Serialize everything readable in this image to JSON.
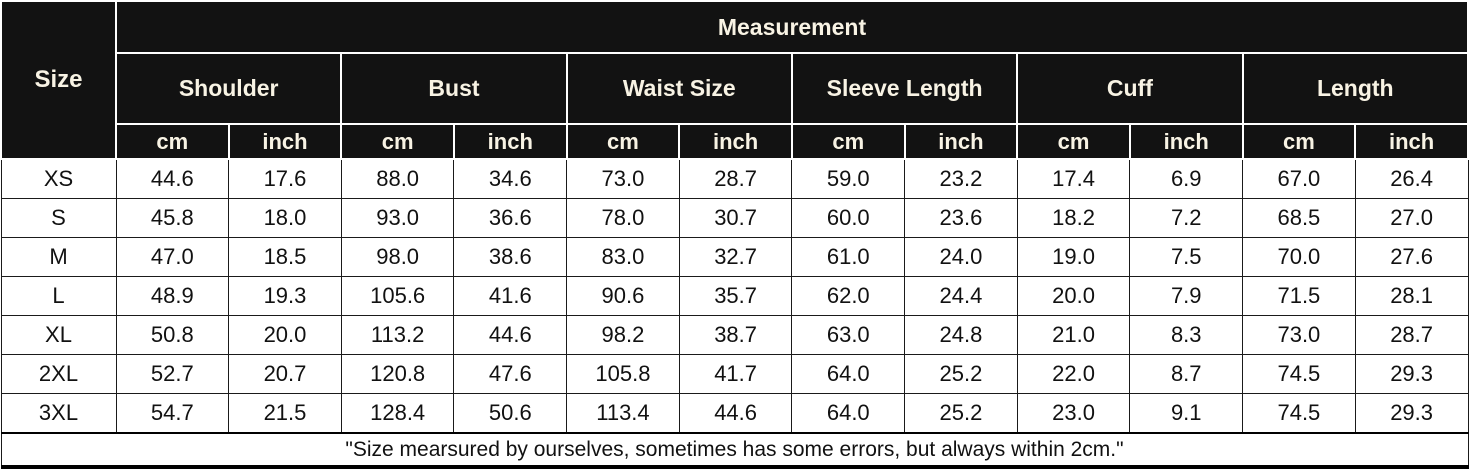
{
  "chart_data": {
    "type": "table",
    "title": "Measurement",
    "corner_header": "Size",
    "groups": [
      "Shoulder",
      "Bust",
      "Waist Size",
      "Sleeve Length",
      "Cuff",
      "Length"
    ],
    "unit_headers": [
      "cm",
      "inch"
    ],
    "rows": [
      {
        "size": "XS",
        "values": [
          "44.6",
          "17.6",
          "88.0",
          "34.6",
          "73.0",
          "28.7",
          "59.0",
          "23.2",
          "17.4",
          "6.9",
          "67.0",
          "26.4"
        ]
      },
      {
        "size": "S",
        "values": [
          "45.8",
          "18.0",
          "93.0",
          "36.6",
          "78.0",
          "30.7",
          "60.0",
          "23.6",
          "18.2",
          "7.2",
          "68.5",
          "27.0"
        ]
      },
      {
        "size": "M",
        "values": [
          "47.0",
          "18.5",
          "98.0",
          "38.6",
          "83.0",
          "32.7",
          "61.0",
          "24.0",
          "19.0",
          "7.5",
          "70.0",
          "27.6"
        ]
      },
      {
        "size": "L",
        "values": [
          "48.9",
          "19.3",
          "105.6",
          "41.6",
          "90.6",
          "35.7",
          "62.0",
          "24.4",
          "20.0",
          "7.9",
          "71.5",
          "28.1"
        ]
      },
      {
        "size": "XL",
        "values": [
          "50.8",
          "20.0",
          "113.2",
          "44.6",
          "98.2",
          "38.7",
          "63.0",
          "24.8",
          "21.0",
          "8.3",
          "73.0",
          "28.7"
        ]
      },
      {
        "size": "2XL",
        "values": [
          "52.7",
          "20.7",
          "120.8",
          "47.6",
          "105.8",
          "41.7",
          "64.0",
          "25.2",
          "22.0",
          "8.7",
          "74.5",
          "29.3"
        ]
      },
      {
        "size": "3XL",
        "values": [
          "54.7",
          "21.5",
          "128.4",
          "50.6",
          "113.4",
          "44.6",
          "64.0",
          "25.2",
          "23.0",
          "9.1",
          "74.5",
          "29.3"
        ]
      }
    ],
    "footnote": "\"Size mearsured by ourselves, sometimes has some errors, but always within 2cm.\""
  },
  "colors": {
    "header_bg": "#121212",
    "header_text": "#f8f3e4",
    "body_text": "#111111",
    "grid_line": "#1a1a1a",
    "page_bg": "#ffffff"
  }
}
